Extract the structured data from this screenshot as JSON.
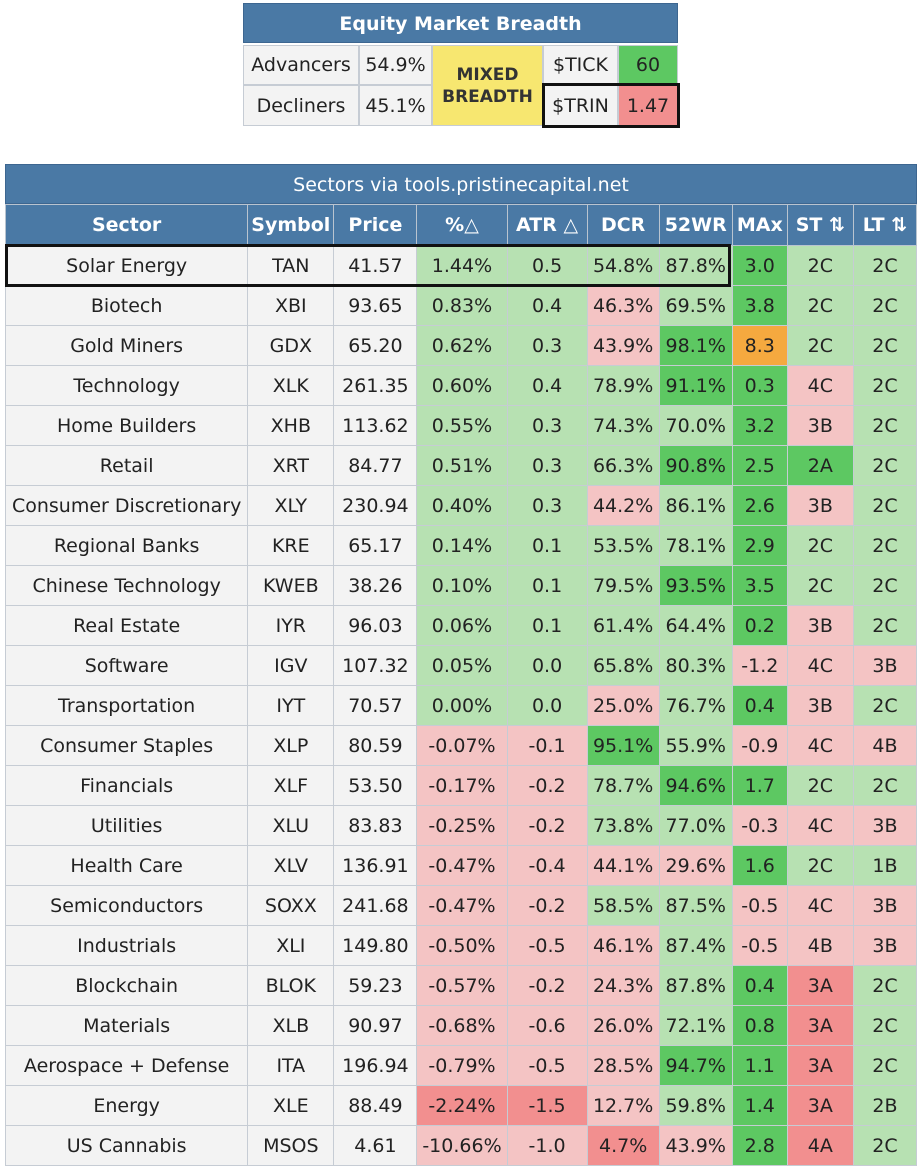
{
  "breadth": {
    "title": "Equity Market Breadth",
    "advancers_label": "Advancers",
    "advancers_value": "54.9%",
    "decliners_label": "Decliners",
    "decliners_value": "45.1%",
    "mixed_line1": "MIXED",
    "mixed_line2": "BREADTH",
    "tick_label": "$TICK",
    "tick_value": "60",
    "trin_label": "$TRIN",
    "trin_value": "1.47"
  },
  "sectors": {
    "title": "Sectors via tools.pristinecapital.net",
    "headers": [
      "Sector",
      "Symbol",
      "Price",
      "%△",
      "ATR △",
      "DCR",
      "52WR",
      "MAx",
      "ST ⇅",
      "LT ⇅"
    ],
    "colors": {
      "neutral": "#f3f3f3",
      "light_green": "#b7e1b2",
      "green": "#5dc862",
      "light_red": "#f4c4c4",
      "red": "#f28f8f",
      "orange": "#f5a93f",
      "header_blue": "#4a79a5"
    },
    "rows": [
      {
        "sector": "Solar Energy",
        "symbol": "TAN",
        "price": "41.57",
        "pct": "1.44%",
        "atr": "0.5",
        "dcr": "54.8%",
        "wr": "87.8%",
        "max": "3.0",
        "st": "2C",
        "lt": "2C",
        "c": [
          "lg",
          "lg",
          "lg",
          "lg",
          "g",
          "lg",
          "lg"
        ]
      },
      {
        "sector": "Biotech",
        "symbol": "XBI",
        "price": "93.65",
        "pct": "0.83%",
        "atr": "0.4",
        "dcr": "46.3%",
        "wr": "69.5%",
        "max": "3.8",
        "st": "2C",
        "lt": "2C",
        "c": [
          "lg",
          "lg",
          "lr",
          "lg",
          "g",
          "lg",
          "lg"
        ]
      },
      {
        "sector": "Gold Miners",
        "symbol": "GDX",
        "price": "65.20",
        "pct": "0.62%",
        "atr": "0.3",
        "dcr": "43.9%",
        "wr": "98.1%",
        "max": "8.3",
        "st": "2C",
        "lt": "2C",
        "c": [
          "lg",
          "lg",
          "lr",
          "g",
          "o",
          "lg",
          "lg"
        ]
      },
      {
        "sector": "Technology",
        "symbol": "XLK",
        "price": "261.35",
        "pct": "0.60%",
        "atr": "0.4",
        "dcr": "78.9%",
        "wr": "91.1%",
        "max": "0.3",
        "st": "4C",
        "lt": "2C",
        "c": [
          "lg",
          "lg",
          "lg",
          "g",
          "g",
          "lr",
          "lg"
        ]
      },
      {
        "sector": "Home Builders",
        "symbol": "XHB",
        "price": "113.62",
        "pct": "0.55%",
        "atr": "0.3",
        "dcr": "74.3%",
        "wr": "70.0%",
        "max": "3.2",
        "st": "3B",
        "lt": "2C",
        "c": [
          "lg",
          "lg",
          "lg",
          "lg",
          "g",
          "lr",
          "lg"
        ]
      },
      {
        "sector": "Retail",
        "symbol": "XRT",
        "price": "84.77",
        "pct": "0.51%",
        "atr": "0.3",
        "dcr": "66.3%",
        "wr": "90.8%",
        "max": "2.5",
        "st": "2A",
        "lt": "2C",
        "c": [
          "lg",
          "lg",
          "lg",
          "g",
          "g",
          "g",
          "lg"
        ]
      },
      {
        "sector": "Consumer Discretionary",
        "symbol": "XLY",
        "price": "230.94",
        "pct": "0.40%",
        "atr": "0.3",
        "dcr": "44.2%",
        "wr": "86.1%",
        "max": "2.6",
        "st": "3B",
        "lt": "2C",
        "c": [
          "lg",
          "lg",
          "lr",
          "lg",
          "g",
          "lr",
          "lg"
        ]
      },
      {
        "sector": "Regional Banks",
        "symbol": "KRE",
        "price": "65.17",
        "pct": "0.14%",
        "atr": "0.1",
        "dcr": "53.5%",
        "wr": "78.1%",
        "max": "2.9",
        "st": "2C",
        "lt": "2C",
        "c": [
          "lg",
          "lg",
          "lg",
          "lg",
          "g",
          "lg",
          "lg"
        ]
      },
      {
        "sector": "Chinese Technology",
        "symbol": "KWEB",
        "price": "38.26",
        "pct": "0.10%",
        "atr": "0.1",
        "dcr": "79.5%",
        "wr": "93.5%",
        "max": "3.5",
        "st": "2C",
        "lt": "2C",
        "c": [
          "lg",
          "lg",
          "lg",
          "g",
          "g",
          "lg",
          "lg"
        ]
      },
      {
        "sector": "Real Estate",
        "symbol": "IYR",
        "price": "96.03",
        "pct": "0.06%",
        "atr": "0.1",
        "dcr": "61.4%",
        "wr": "64.4%",
        "max": "0.2",
        "st": "3B",
        "lt": "2C",
        "c": [
          "lg",
          "lg",
          "lg",
          "lg",
          "g",
          "lr",
          "lg"
        ]
      },
      {
        "sector": "Software",
        "symbol": "IGV",
        "price": "107.32",
        "pct": "0.05%",
        "atr": "0.0",
        "dcr": "65.8%",
        "wr": "80.3%",
        "max": "-1.2",
        "st": "4C",
        "lt": "3B",
        "c": [
          "lg",
          "lg",
          "lg",
          "lg",
          "lr",
          "lr",
          "lr"
        ]
      },
      {
        "sector": "Transportation",
        "symbol": "IYT",
        "price": "70.57",
        "pct": "0.00%",
        "atr": "0.0",
        "dcr": "25.0%",
        "wr": "76.7%",
        "max": "0.4",
        "st": "3B",
        "lt": "2C",
        "c": [
          "lg",
          "lg",
          "lr",
          "lg",
          "g",
          "lr",
          "lg"
        ]
      },
      {
        "sector": "Consumer Staples",
        "symbol": "XLP",
        "price": "80.59",
        "pct": "-0.07%",
        "atr": "-0.1",
        "dcr": "95.1%",
        "wr": "55.9%",
        "max": "-0.9",
        "st": "4C",
        "lt": "4B",
        "c": [
          "lr",
          "lr",
          "g",
          "lg",
          "lr",
          "lr",
          "lr"
        ]
      },
      {
        "sector": "Financials",
        "symbol": "XLF",
        "price": "53.50",
        "pct": "-0.17%",
        "atr": "-0.2",
        "dcr": "78.7%",
        "wr": "94.6%",
        "max": "1.7",
        "st": "2C",
        "lt": "2C",
        "c": [
          "lr",
          "lr",
          "lg",
          "g",
          "g",
          "lg",
          "lg"
        ]
      },
      {
        "sector": "Utilities",
        "symbol": "XLU",
        "price": "83.83",
        "pct": "-0.25%",
        "atr": "-0.2",
        "dcr": "73.8%",
        "wr": "77.0%",
        "max": "-0.3",
        "st": "4C",
        "lt": "3B",
        "c": [
          "lr",
          "lr",
          "lg",
          "lg",
          "lr",
          "lr",
          "lr"
        ]
      },
      {
        "sector": "Health Care",
        "symbol": "XLV",
        "price": "136.91",
        "pct": "-0.47%",
        "atr": "-0.4",
        "dcr": "44.1%",
        "wr": "29.6%",
        "max": "1.6",
        "st": "2C",
        "lt": "1B",
        "c": [
          "lr",
          "lr",
          "lr",
          "lr",
          "g",
          "lg",
          "lg"
        ]
      },
      {
        "sector": "Semiconductors",
        "symbol": "SOXX",
        "price": "241.68",
        "pct": "-0.47%",
        "atr": "-0.2",
        "dcr": "58.5%",
        "wr": "87.5%",
        "max": "-0.5",
        "st": "4C",
        "lt": "3B",
        "c": [
          "lr",
          "lr",
          "lg",
          "lg",
          "lr",
          "lr",
          "lr"
        ]
      },
      {
        "sector": "Industrials",
        "symbol": "XLI",
        "price": "149.80",
        "pct": "-0.50%",
        "atr": "-0.5",
        "dcr": "46.1%",
        "wr": "87.4%",
        "max": "-0.5",
        "st": "4B",
        "lt": "3B",
        "c": [
          "lr",
          "lr",
          "lr",
          "lg",
          "lr",
          "lr",
          "lr"
        ]
      },
      {
        "sector": "Blockchain",
        "symbol": "BLOK",
        "price": "59.23",
        "pct": "-0.57%",
        "atr": "-0.2",
        "dcr": "24.3%",
        "wr": "87.8%",
        "max": "0.4",
        "st": "3A",
        "lt": "2C",
        "c": [
          "lr",
          "lr",
          "lr",
          "lg",
          "g",
          "r",
          "lg"
        ]
      },
      {
        "sector": "Materials",
        "symbol": "XLB",
        "price": "90.97",
        "pct": "-0.68%",
        "atr": "-0.6",
        "dcr": "26.0%",
        "wr": "72.1%",
        "max": "0.8",
        "st": "3A",
        "lt": "2C",
        "c": [
          "lr",
          "lr",
          "lr",
          "lg",
          "g",
          "r",
          "lg"
        ]
      },
      {
        "sector": "Aerospace + Defense",
        "symbol": "ITA",
        "price": "196.94",
        "pct": "-0.79%",
        "atr": "-0.5",
        "dcr": "28.5%",
        "wr": "94.7%",
        "max": "1.1",
        "st": "3A",
        "lt": "2C",
        "c": [
          "lr",
          "lr",
          "lr",
          "g",
          "g",
          "r",
          "lg"
        ]
      },
      {
        "sector": "Energy",
        "symbol": "XLE",
        "price": "88.49",
        "pct": "-2.24%",
        "atr": "-1.5",
        "dcr": "12.7%",
        "wr": "59.8%",
        "max": "1.4",
        "st": "3A",
        "lt": "2B",
        "c": [
          "r",
          "r",
          "lr",
          "lg",
          "g",
          "r",
          "lg"
        ]
      },
      {
        "sector": "US Cannabis",
        "symbol": "MSOS",
        "price": "4.61",
        "pct": "-10.66%",
        "atr": "-1.0",
        "dcr": "4.7%",
        "wr": "43.9%",
        "max": "2.8",
        "st": "4A",
        "lt": "2C",
        "c": [
          "lr",
          "lr",
          "r",
          "lr",
          "g",
          "r",
          "lg"
        ]
      }
    ]
  }
}
